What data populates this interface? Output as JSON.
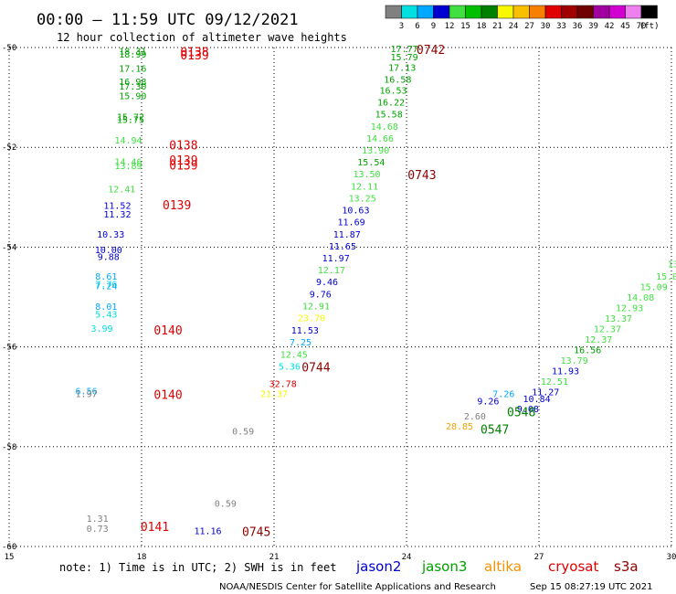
{
  "title": "00:00 – 11:59 UTC 09/12/2021",
  "subtitle": "12 hour collection of altimeter wave heights",
  "note": "note: 1) Time is in UTC; 2) SWH is in feet",
  "credit": "NOAA/NESDIS Center for Satellite Applications and Research",
  "timestamp": "Sep 15 08:27:19 UTC 2021",
  "color_scale": {
    "unit": "(ft)",
    "labels": [
      "3",
      "6",
      "9",
      "12",
      "15",
      "18",
      "21",
      "24",
      "27",
      "30",
      "33",
      "36",
      "39",
      "42",
      "45",
      "70"
    ],
    "colors": [
      "#808080",
      "#00e0e0",
      "#00a8ff",
      "#0000d0",
      "#40e040",
      "#00c000",
      "#008000",
      "#f8f800",
      "#f8c000",
      "#f88000",
      "#e00000",
      "#a00000",
      "#700000",
      "#a000a0",
      "#d000d0",
      "#f080f0",
      "#000000"
    ]
  },
  "satellites": [
    {
      "name": "jason2",
      "color": "#0000d0"
    },
    {
      "name": "jason3",
      "color": "#00a000"
    },
    {
      "name": "altika",
      "color": "#f89000"
    },
    {
      "name": "cryosat",
      "color": "#e00000"
    },
    {
      "name": "s3a",
      "color": "#900000"
    }
  ],
  "chart_data": {
    "type": "scatter",
    "title": "00:00 – 11:59 UTC 09/12/2021",
    "subtitle": "12 hour collection of altimeter wave heights",
    "xlim": [
      15,
      30
    ],
    "ylim": [
      -60,
      -50
    ],
    "x_ticks": [
      15,
      18,
      21,
      24,
      27,
      30
    ],
    "y_ticks": [
      -50,
      -52,
      -54,
      -56,
      -58,
      -60
    ],
    "grid": "dotted",
    "wave_heights_ft": [
      {
        "x": 17.8,
        "y": -50.08,
        "text": "18.31",
        "color": "#00a000"
      },
      {
        "x": 17.8,
        "y": -50.15,
        "text": "18.99",
        "color": "#00a000"
      },
      {
        "x": 17.8,
        "y": -50.43,
        "text": "17.16",
        "color": "#00a000"
      },
      {
        "x": 17.8,
        "y": -50.7,
        "text": "16.98",
        "color": "#00a000"
      },
      {
        "x": 17.8,
        "y": -50.79,
        "text": "17.30",
        "color": "#00a000"
      },
      {
        "x": 17.8,
        "y": -50.98,
        "text": "15.90",
        "color": "#00a000"
      },
      {
        "x": 17.75,
        "y": -51.4,
        "text": "15.72",
        "color": "#00a000"
      },
      {
        "x": 17.75,
        "y": -51.46,
        "text": "15.75",
        "color": "#00a000"
      },
      {
        "x": 17.7,
        "y": -51.87,
        "text": "14.94",
        "color": "#40e040"
      },
      {
        "x": 17.7,
        "y": -52.3,
        "text": "14.46",
        "color": "#40e040"
      },
      {
        "x": 17.7,
        "y": -52.38,
        "text": "13.89",
        "color": "#40e040"
      },
      {
        "x": 17.55,
        "y": -52.85,
        "text": "12.41",
        "color": "#40e040"
      },
      {
        "x": 17.45,
        "y": -53.18,
        "text": "11.52",
        "color": "#0000d0"
      },
      {
        "x": 17.45,
        "y": -53.35,
        "text": "11.32",
        "color": "#0000d0"
      },
      {
        "x": 17.3,
        "y": -53.75,
        "text": "10.33",
        "color": "#0000d0"
      },
      {
        "x": 17.25,
        "y": -54.07,
        "text": "10.00",
        "color": "#0000d0"
      },
      {
        "x": 17.25,
        "y": -54.2,
        "text": "9.88",
        "color": "#0000d0"
      },
      {
        "x": 17.2,
        "y": -54.6,
        "text": "8.61",
        "color": "#00a8ff"
      },
      {
        "x": 17.2,
        "y": -54.75,
        "text": "7.76",
        "color": "#00e0e0"
      },
      {
        "x": 17.2,
        "y": -54.79,
        "text": "7.24",
        "color": "#00a8ff"
      },
      {
        "x": 17.2,
        "y": -55.2,
        "text": "8.01",
        "color": "#00a8ff"
      },
      {
        "x": 17.2,
        "y": -55.36,
        "text": "5.43",
        "color": "#00e0e0"
      },
      {
        "x": 17.1,
        "y": -55.64,
        "text": "3.99",
        "color": "#00e0e0"
      },
      {
        "x": 16.75,
        "y": -56.9,
        "text": "6.56",
        "color": "#00a8ff"
      },
      {
        "x": 16.75,
        "y": -56.95,
        "text": "1.97",
        "color": "#808080"
      },
      {
        "x": 17.0,
        "y": -59.45,
        "text": "1.31",
        "color": "#808080"
      },
      {
        "x": 17.0,
        "y": -59.65,
        "text": "0.73",
        "color": "#808080"
      },
      {
        "x": 23.95,
        "y": -50.04,
        "text": "17.77",
        "color": "#00a000"
      },
      {
        "x": 23.95,
        "y": -50.2,
        "text": "15.79",
        "color": "#00a000"
      },
      {
        "x": 23.9,
        "y": -50.41,
        "text": "17.13",
        "color": "#00a000"
      },
      {
        "x": 23.8,
        "y": -50.65,
        "text": "16.58",
        "color": "#00a000"
      },
      {
        "x": 23.7,
        "y": -50.87,
        "text": "16.53",
        "color": "#00a000"
      },
      {
        "x": 23.65,
        "y": -51.11,
        "text": "16.22",
        "color": "#00a000"
      },
      {
        "x": 23.6,
        "y": -51.35,
        "text": "15.58",
        "color": "#00a000"
      },
      {
        "x": 23.5,
        "y": -51.59,
        "text": "14.68",
        "color": "#40e040"
      },
      {
        "x": 23.4,
        "y": -51.83,
        "text": "14.66",
        "color": "#40e040"
      },
      {
        "x": 23.3,
        "y": -52.07,
        "text": "13.90",
        "color": "#40e040"
      },
      {
        "x": 23.2,
        "y": -52.31,
        "text": "15.54",
        "color": "#00a000"
      },
      {
        "x": 23.1,
        "y": -52.55,
        "text": "13.50",
        "color": "#40e040"
      },
      {
        "x": 23.05,
        "y": -52.79,
        "text": "12.11",
        "color": "#40e040"
      },
      {
        "x": 23.0,
        "y": -53.03,
        "text": "13.25",
        "color": "#40e040"
      },
      {
        "x": 22.85,
        "y": -53.27,
        "text": "10.63",
        "color": "#0000d0"
      },
      {
        "x": 22.75,
        "y": -53.51,
        "text": "11.69",
        "color": "#0000d0"
      },
      {
        "x": 22.65,
        "y": -53.75,
        "text": "11.87",
        "color": "#0000d0"
      },
      {
        "x": 22.55,
        "y": -53.99,
        "text": "11.65",
        "color": "#0000d0"
      },
      {
        "x": 22.4,
        "y": -54.23,
        "text": "11.97",
        "color": "#0000d0"
      },
      {
        "x": 22.3,
        "y": -54.47,
        "text": "12.17",
        "color": "#40e040"
      },
      {
        "x": 22.2,
        "y": -54.71,
        "text": "9.46",
        "color": "#0000d0"
      },
      {
        "x": 22.05,
        "y": -54.95,
        "text": "9.76",
        "color": "#0000d0"
      },
      {
        "x": 21.95,
        "y": -55.19,
        "text": "12.91",
        "color": "#40e040"
      },
      {
        "x": 21.85,
        "y": -55.43,
        "text": "23.70",
        "color": "#f8f800"
      },
      {
        "x": 21.7,
        "y": -55.68,
        "text": "11.53",
        "color": "#0000d0"
      },
      {
        "x": 21.6,
        "y": -55.92,
        "text": "7.25",
        "color": "#00a8ff"
      },
      {
        "x": 21.45,
        "y": -56.16,
        "text": "12.45",
        "color": "#40e040"
      },
      {
        "x": 21.35,
        "y": -56.4,
        "text": "5.36",
        "color": "#00e0e0"
      },
      {
        "x": 21.2,
        "y": -56.75,
        "text": "32.78",
        "color": "#e00000"
      },
      {
        "x": 21.0,
        "y": -56.95,
        "text": "21.37",
        "color": "#f8f800"
      },
      {
        "x": 20.3,
        "y": -57.7,
        "text": "0.59",
        "color": "#808080"
      },
      {
        "x": 19.9,
        "y": -59.15,
        "text": "0.59",
        "color": "#808080"
      },
      {
        "x": 19.5,
        "y": -59.7,
        "text": "11.16",
        "color": "#0000d0"
      },
      {
        "x": 30.1,
        "y": -54.35,
        "text": "13.",
        "color": "#40e040"
      },
      {
        "x": 29.9,
        "y": -54.6,
        "text": "15.0",
        "color": "#40e040"
      },
      {
        "x": 29.6,
        "y": -54.81,
        "text": "15.09",
        "color": "#40e040"
      },
      {
        "x": 29.3,
        "y": -55.02,
        "text": "14.08",
        "color": "#40e040"
      },
      {
        "x": 29.05,
        "y": -55.23,
        "text": "12.93",
        "color": "#40e040"
      },
      {
        "x": 28.8,
        "y": -55.44,
        "text": "13.37",
        "color": "#40e040"
      },
      {
        "x": 28.55,
        "y": -55.65,
        "text": "12.37",
        "color": "#40e040"
      },
      {
        "x": 28.35,
        "y": -55.86,
        "text": "12.37",
        "color": "#40e040"
      },
      {
        "x": 28.1,
        "y": -56.07,
        "text": "16.56",
        "color": "#00a000"
      },
      {
        "x": 27.8,
        "y": -56.28,
        "text": "13.79",
        "color": "#40e040"
      },
      {
        "x": 27.6,
        "y": -56.49,
        "text": "11.93",
        "color": "#0000d0"
      },
      {
        "x": 27.35,
        "y": -56.7,
        "text": "12.51",
        "color": "#40e040"
      },
      {
        "x": 27.15,
        "y": -56.91,
        "text": "11.27",
        "color": "#0000d0"
      },
      {
        "x": 26.95,
        "y": -57.05,
        "text": "10.84",
        "color": "#0000d0"
      },
      {
        "x": 26.75,
        "y": -57.25,
        "text": "9.08",
        "color": "#0000d0"
      },
      {
        "x": 26.2,
        "y": -56.95,
        "text": "7.26",
        "color": "#00a8ff"
      },
      {
        "x": 25.85,
        "y": -57.1,
        "text": "9.26",
        "color": "#0000d0"
      },
      {
        "x": 25.55,
        "y": -57.4,
        "text": "2.60",
        "color": "#808080"
      },
      {
        "x": 25.2,
        "y": -57.6,
        "text": "28.85",
        "color": "#f8a000"
      }
    ],
    "pass_labels": [
      {
        "x": 19.2,
        "y": -50.08,
        "text": "0138",
        "color": "#e00000"
      },
      {
        "x": 19.2,
        "y": -50.15,
        "text": "0139",
        "color": "#e00000"
      },
      {
        "x": 18.95,
        "y": -51.95,
        "text": "0138",
        "color": "#e00000"
      },
      {
        "x": 18.95,
        "y": -52.25,
        "text": "0139",
        "color": "#e00000"
      },
      {
        "x": 18.95,
        "y": -52.35,
        "text": "0139",
        "color": "#e00000"
      },
      {
        "x": 18.8,
        "y": -53.15,
        "text": "0139",
        "color": "#e00000"
      },
      {
        "x": 18.6,
        "y": -55.66,
        "text": "0140",
        "color": "#e00000"
      },
      {
        "x": 18.6,
        "y": -56.95,
        "text": "0140",
        "color": "#e00000"
      },
      {
        "x": 18.3,
        "y": -59.6,
        "text": "0141",
        "color": "#e00000"
      },
      {
        "x": 24.55,
        "y": -50.04,
        "text": "0742",
        "color": "#900000"
      },
      {
        "x": 24.35,
        "y": -52.55,
        "text": "0743",
        "color": "#900000"
      },
      {
        "x": 21.95,
        "y": -56.4,
        "text": "0744",
        "color": "#900000"
      },
      {
        "x": 20.6,
        "y": -59.7,
        "text": "0745",
        "color": "#900000"
      },
      {
        "x": 26.6,
        "y": -57.3,
        "text": "0548",
        "color": "#008000"
      },
      {
        "x": 26.0,
        "y": -57.65,
        "text": "0547",
        "color": "#008000"
      }
    ]
  }
}
